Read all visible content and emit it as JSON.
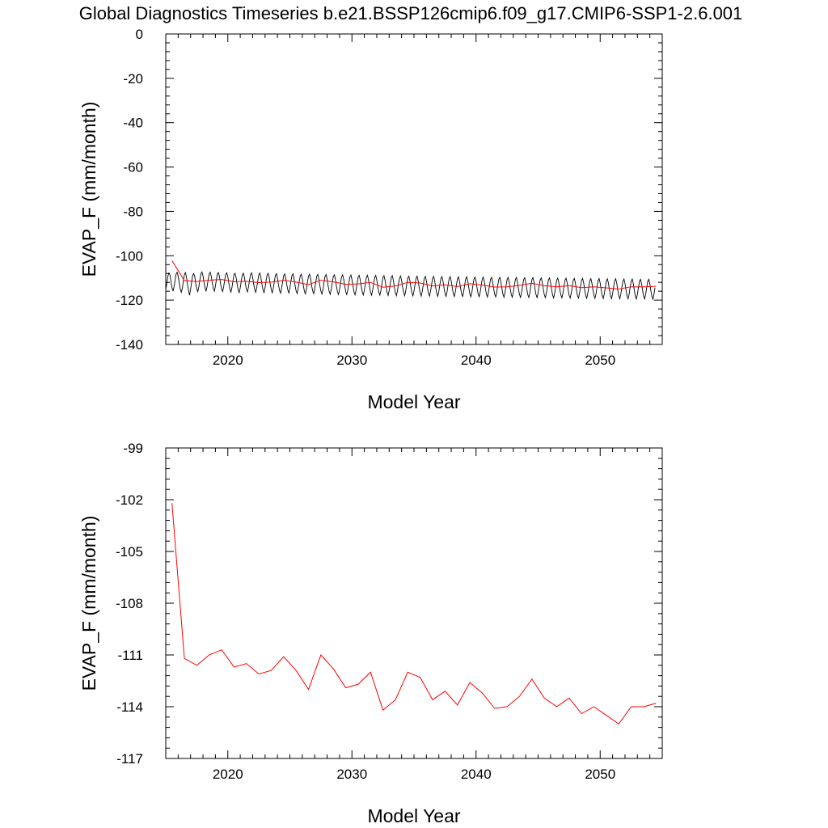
{
  "title": "Global Diagnostics Timeseries b.e21.BSSP126cmip6.f09_g17.CMIP6-SSP1-2.6.001",
  "colors": {
    "monthly": "#000000",
    "annual": "#ff0000"
  },
  "chart_data": [
    {
      "type": "line",
      "xlabel": "Model Year",
      "ylabel": "EVAP_F (mm/month)",
      "xlim": [
        2015,
        2055
      ],
      "ylim": [
        -140,
        0
      ],
      "x_ticks": [
        2020,
        2030,
        2040,
        2050
      ],
      "x_tick_labels": [
        "2020",
        "2030",
        "2040",
        "2050"
      ],
      "y_ticks": [
        0,
        -20,
        -40,
        -60,
        -80,
        -100,
        -120,
        -140
      ],
      "y_tick_labels": [
        "0",
        "-20",
        "-40",
        "-60",
        "-80",
        "-100",
        "-120",
        "-140"
      ],
      "grid": false,
      "series": [
        {
          "style": "monthly",
          "start": 2015.0,
          "step": 0.0833333,
          "values": [
            -115.3,
            -112.6,
            -109.3,
            -107.8,
            -108.5,
            -111.6,
            -114.2,
            -116.0,
            -114.0,
            -111.0,
            -108.3,
            -107.4,
            -109.2,
            -112.2,
            -114.8,
            -116.5,
            -114.7,
            -111.4,
            -108.6,
            -107.6,
            -109.5,
            -113.0,
            -115.5,
            -117.8,
            -115.2,
            -111.9,
            -108.9,
            -108.0,
            -109.3,
            -112.6,
            -115.1,
            -116.2,
            -114.0,
            -110.8,
            -108.1,
            -107.3,
            -109.1,
            -112.1,
            -114.6,
            -115.9,
            -113.8,
            -110.7,
            -108.2,
            -107.4,
            -109.3,
            -112.3,
            -114.8,
            -116.0,
            -113.7,
            -110.6,
            -108.0,
            -107.6,
            -109.6,
            -112.7,
            -115.0,
            -116.1,
            -113.9,
            -110.9,
            -108.3,
            -107.7,
            -109.4,
            -112.4,
            -114.9,
            -116.4,
            -114.3,
            -111.2,
            -108.5,
            -107.9,
            -109.8,
            -112.9,
            -115.4,
            -116.6,
            -114.5,
            -111.4,
            -108.7,
            -107.9,
            -109.6,
            -112.6,
            -115.1,
            -116.3,
            -114.1,
            -111.0,
            -108.4,
            -107.7,
            -109.7,
            -112.8,
            -115.2,
            -116.5,
            -114.2,
            -111.2,
            -108.6,
            -107.8,
            -109.9,
            -112.9,
            -115.3,
            -116.6,
            -114.4,
            -111.3,
            -108.6,
            -107.9,
            -109.8,
            -112.8,
            -115.3,
            -116.7,
            -114.6,
            -111.6,
            -108.9,
            -108.1,
            -110.1,
            -113.1,
            -115.6,
            -116.9,
            -114.7,
            -111.7,
            -109.0,
            -108.2,
            -110.0,
            -113.0,
            -115.4,
            -116.8,
            -114.6,
            -111.5,
            -108.9,
            -108.2,
            -110.2,
            -113.3,
            -115.8,
            -117.0,
            -114.8,
            -111.8,
            -109.1,
            -108.3,
            -110.3,
            -113.4,
            -115.9,
            -117.2,
            -115.0,
            -111.9,
            -109.2,
            -108.3,
            -110.2,
            -113.4,
            -115.8,
            -117.1,
            -114.9,
            -111.9,
            -109.2,
            -108.4,
            -110.4,
            -113.5,
            -116.0,
            -117.3,
            -115.1,
            -112.1,
            -109.4,
            -108.5,
            -110.5,
            -113.6,
            -116.1,
            -117.4,
            -115.2,
            -112.1,
            -109.4,
            -108.6,
            -110.6,
            -113.7,
            -116.2,
            -117.5,
            -115.3,
            -112.2,
            -109.5,
            -108.6,
            -110.5,
            -113.6,
            -116.2,
            -117.5,
            -115.4,
            -112.3,
            -109.6,
            -108.7,
            -110.7,
            -113.7,
            -116.3,
            -117.6,
            -115.5,
            -112.4,
            -109.6,
            -108.8,
            -110.8,
            -113.8,
            -116.4,
            -117.7,
            -115.5,
            -112.5,
            -109.7,
            -108.8,
            -110.8,
            -113.9,
            -116.4,
            -117.8,
            -115.6,
            -112.5,
            -109.8,
            -108.9,
            -110.9,
            -113.9,
            -116.5,
            -117.8,
            -115.7,
            -112.6,
            -109.8,
            -109.0,
            -111.0,
            -114.0,
            -116.6,
            -117.9,
            -115.7,
            -112.7,
            -109.9,
            -109.0,
            -111.0,
            -114.1,
            -116.6,
            -118.0,
            -115.8,
            -112.7,
            -110.0,
            -109.1,
            -111.1,
            -114.1,
            -116.7,
            -118.0,
            -115.9,
            -112.8,
            -110.0,
            -109.2,
            -111.1,
            -114.2,
            -116.8,
            -118.1,
            -115.9,
            -112.9,
            -110.1,
            -109.2,
            -111.2,
            -114.3,
            -116.8,
            -118.2,
            -116.0,
            -112.9,
            -110.1,
            -109.3,
            -111.3,
            -114.3,
            -116.9,
            -118.2,
            -116.0,
            -113.0,
            -110.2,
            -109.3,
            -111.3,
            -114.4,
            -116.9,
            -118.3,
            -116.1,
            -113.0,
            -110.3,
            -109.4,
            -111.4,
            -114.4,
            -117.0,
            -118.3,
            -116.2,
            -113.1,
            -110.3,
            -109.4,
            -111.4,
            -114.5,
            -117.1,
            -118.4,
            -116.2,
            -113.2,
            -110.4,
            -109.5,
            -111.5,
            -114.5,
            -117.1,
            -118.4,
            -116.3,
            -113.2,
            -110.4,
            -109.5,
            -111.5,
            -114.6,
            -117.2,
            -118.5,
            -116.3,
            -113.3,
            -110.5,
            -109.6,
            -111.6,
            -114.6,
            -117.2,
            -118.5,
            -116.4,
            -113.3,
            -110.5,
            -109.6,
            -111.6,
            -114.7,
            -117.3,
            -118.6,
            -116.4,
            -113.4,
            -110.6,
            -109.7,
            -111.7,
            -114.7,
            -117.3,
            -118.6,
            -116.5,
            -113.4,
            -110.6,
            -109.7,
            -111.7,
            -114.8,
            -117.4,
            -118.7,
            -116.5,
            -113.5,
            -110.7,
            -109.8,
            -111.8,
            -114.8,
            -117.4,
            -118.7,
            -116.6,
            -113.5,
            -110.7,
            -109.8,
            -111.8,
            -114.9,
            -117.5,
            -118.8,
            -116.6,
            -113.6,
            -110.8,
            -109.9,
            -111.9,
            -114.9,
            -117.5,
            -118.8,
            -116.7,
            -113.6,
            -110.8,
            -109.9,
            -111.9,
            -115.0,
            -117.6,
            -118.9,
            -116.7,
            -113.7,
            -110.9,
            -110.0,
            -112.0,
            -115.0,
            -117.6,
            -118.9,
            -116.8,
            -113.7,
            -110.9,
            -110.0,
            -112.0,
            -115.1,
            -117.7,
            -119.0,
            -116.8,
            -113.8,
            -111.0,
            -110.1,
            -112.1,
            -115.1,
            -117.7,
            -119.0,
            -116.9,
            -113.8,
            -111.0,
            -110.1,
            -112.1,
            -115.2,
            -117.8,
            -119.1,
            -116.9,
            -113.9,
            -111.1,
            -110.2,
            -112.2,
            -115.2,
            -117.8,
            -119.1,
            -117.0,
            -113.9,
            -111.1,
            -110.2,
            -112.2,
            -115.3,
            -117.9,
            -119.2,
            -117.0,
            -114.0,
            -111.2,
            -110.3,
            -112.3,
            -115.3,
            -117.9,
            -119.2,
            -117.1,
            -114.0,
            -111.2,
            -110.3,
            -112.3,
            -115.4,
            -118.0,
            -119.3,
            -117.1,
            -114.1,
            -111.3,
            -110.4,
            -112.4,
            -115.4,
            -118.0,
            -119.3,
            -117.2,
            -114.1,
            -111.3,
            -110.4,
            -112.4,
            -115.5,
            -118.1,
            -119.4,
            -117.2,
            -114.2,
            -111.4,
            -110.5,
            -112.5,
            -115.5,
            -118.1,
            -119.4,
            -117.3,
            -114.2,
            -111.4,
            -110.5,
            -112.5,
            -115.6,
            -118.2,
            -119.5,
            -117.3,
            -114.3,
            -111.5,
            -110.6,
            -112.6,
            -115.6,
            -118.2,
            -119.5,
            -117.4,
            -114.3,
            -111.5,
            -110.6,
            -112.6,
            -115.7,
            -118.3,
            -119.6,
            -117.4,
            -114.4
          ]
        },
        {
          "style": "annual",
          "x": [
            2015.5,
            2016.5,
            2017.5,
            2018.5,
            2019.5,
            2020.5,
            2021.5,
            2022.5,
            2023.5,
            2024.5,
            2025.5,
            2026.5,
            2027.5,
            2028.5,
            2029.5,
            2030.5,
            2031.5,
            2032.5,
            2033.5,
            2034.5,
            2035.5,
            2036.5,
            2037.5,
            2038.5,
            2039.5,
            2040.5,
            2041.5,
            2042.5,
            2043.5,
            2044.5,
            2045.5,
            2046.5,
            2047.5,
            2048.5,
            2049.5,
            2050.5,
            2051.5,
            2052.5,
            2053.5,
            2054.5
          ],
          "values": [
            -102.2,
            -111.2,
            -111.6,
            -111.0,
            -110.7,
            -111.7,
            -111.5,
            -112.1,
            -111.9,
            -111.1,
            -111.9,
            -113.0,
            -111.0,
            -111.8,
            -112.9,
            -112.7,
            -112.0,
            -114.2,
            -113.6,
            -112.0,
            -112.3,
            -113.6,
            -113.1,
            -113.9,
            -112.6,
            -113.2,
            -114.1,
            -114.0,
            -113.4,
            -112.4,
            -113.5,
            -114.0,
            -113.5,
            -114.4,
            -114.0,
            -114.5,
            -115.0,
            -114.0,
            -114.0,
            -113.8
          ]
        }
      ]
    },
    {
      "type": "line",
      "xlabel": "Model Year",
      "ylabel": "EVAP_F (mm/month)",
      "xlim": [
        2015,
        2055
      ],
      "ylim": [
        -117,
        -99
      ],
      "x_ticks": [
        2020,
        2030,
        2040,
        2050
      ],
      "x_tick_labels": [
        "2020",
        "2030",
        "2040",
        "2050"
      ],
      "y_ticks": [
        -99,
        -102,
        -105,
        -108,
        -111,
        -114,
        -117
      ],
      "y_tick_labels": [
        "-99",
        "-102",
        "-105",
        "-108",
        "-111",
        "-114",
        "-117"
      ],
      "grid": false,
      "series": [
        {
          "style": "annual",
          "x": [
            2015.5,
            2016.5,
            2017.5,
            2018.5,
            2019.5,
            2020.5,
            2021.5,
            2022.5,
            2023.5,
            2024.5,
            2025.5,
            2026.5,
            2027.5,
            2028.5,
            2029.5,
            2030.5,
            2031.5,
            2032.5,
            2033.5,
            2034.5,
            2035.5,
            2036.5,
            2037.5,
            2038.5,
            2039.5,
            2040.5,
            2041.5,
            2042.5,
            2043.5,
            2044.5,
            2045.5,
            2046.5,
            2047.5,
            2048.5,
            2049.5,
            2050.5,
            2051.5,
            2052.5,
            2053.5,
            2054.5
          ],
          "values": [
            -102.2,
            -111.2,
            -111.6,
            -111.0,
            -110.7,
            -111.7,
            -111.5,
            -112.1,
            -111.9,
            -111.1,
            -111.9,
            -113.0,
            -111.0,
            -111.8,
            -112.9,
            -112.7,
            -112.0,
            -114.2,
            -113.6,
            -112.0,
            -112.3,
            -113.6,
            -113.1,
            -113.9,
            -112.6,
            -113.2,
            -114.1,
            -114.0,
            -113.4,
            -112.4,
            -113.5,
            -114.0,
            -113.5,
            -114.4,
            -114.0,
            -114.5,
            -115.0,
            -114.0,
            -114.0,
            -113.8
          ]
        }
      ]
    }
  ]
}
